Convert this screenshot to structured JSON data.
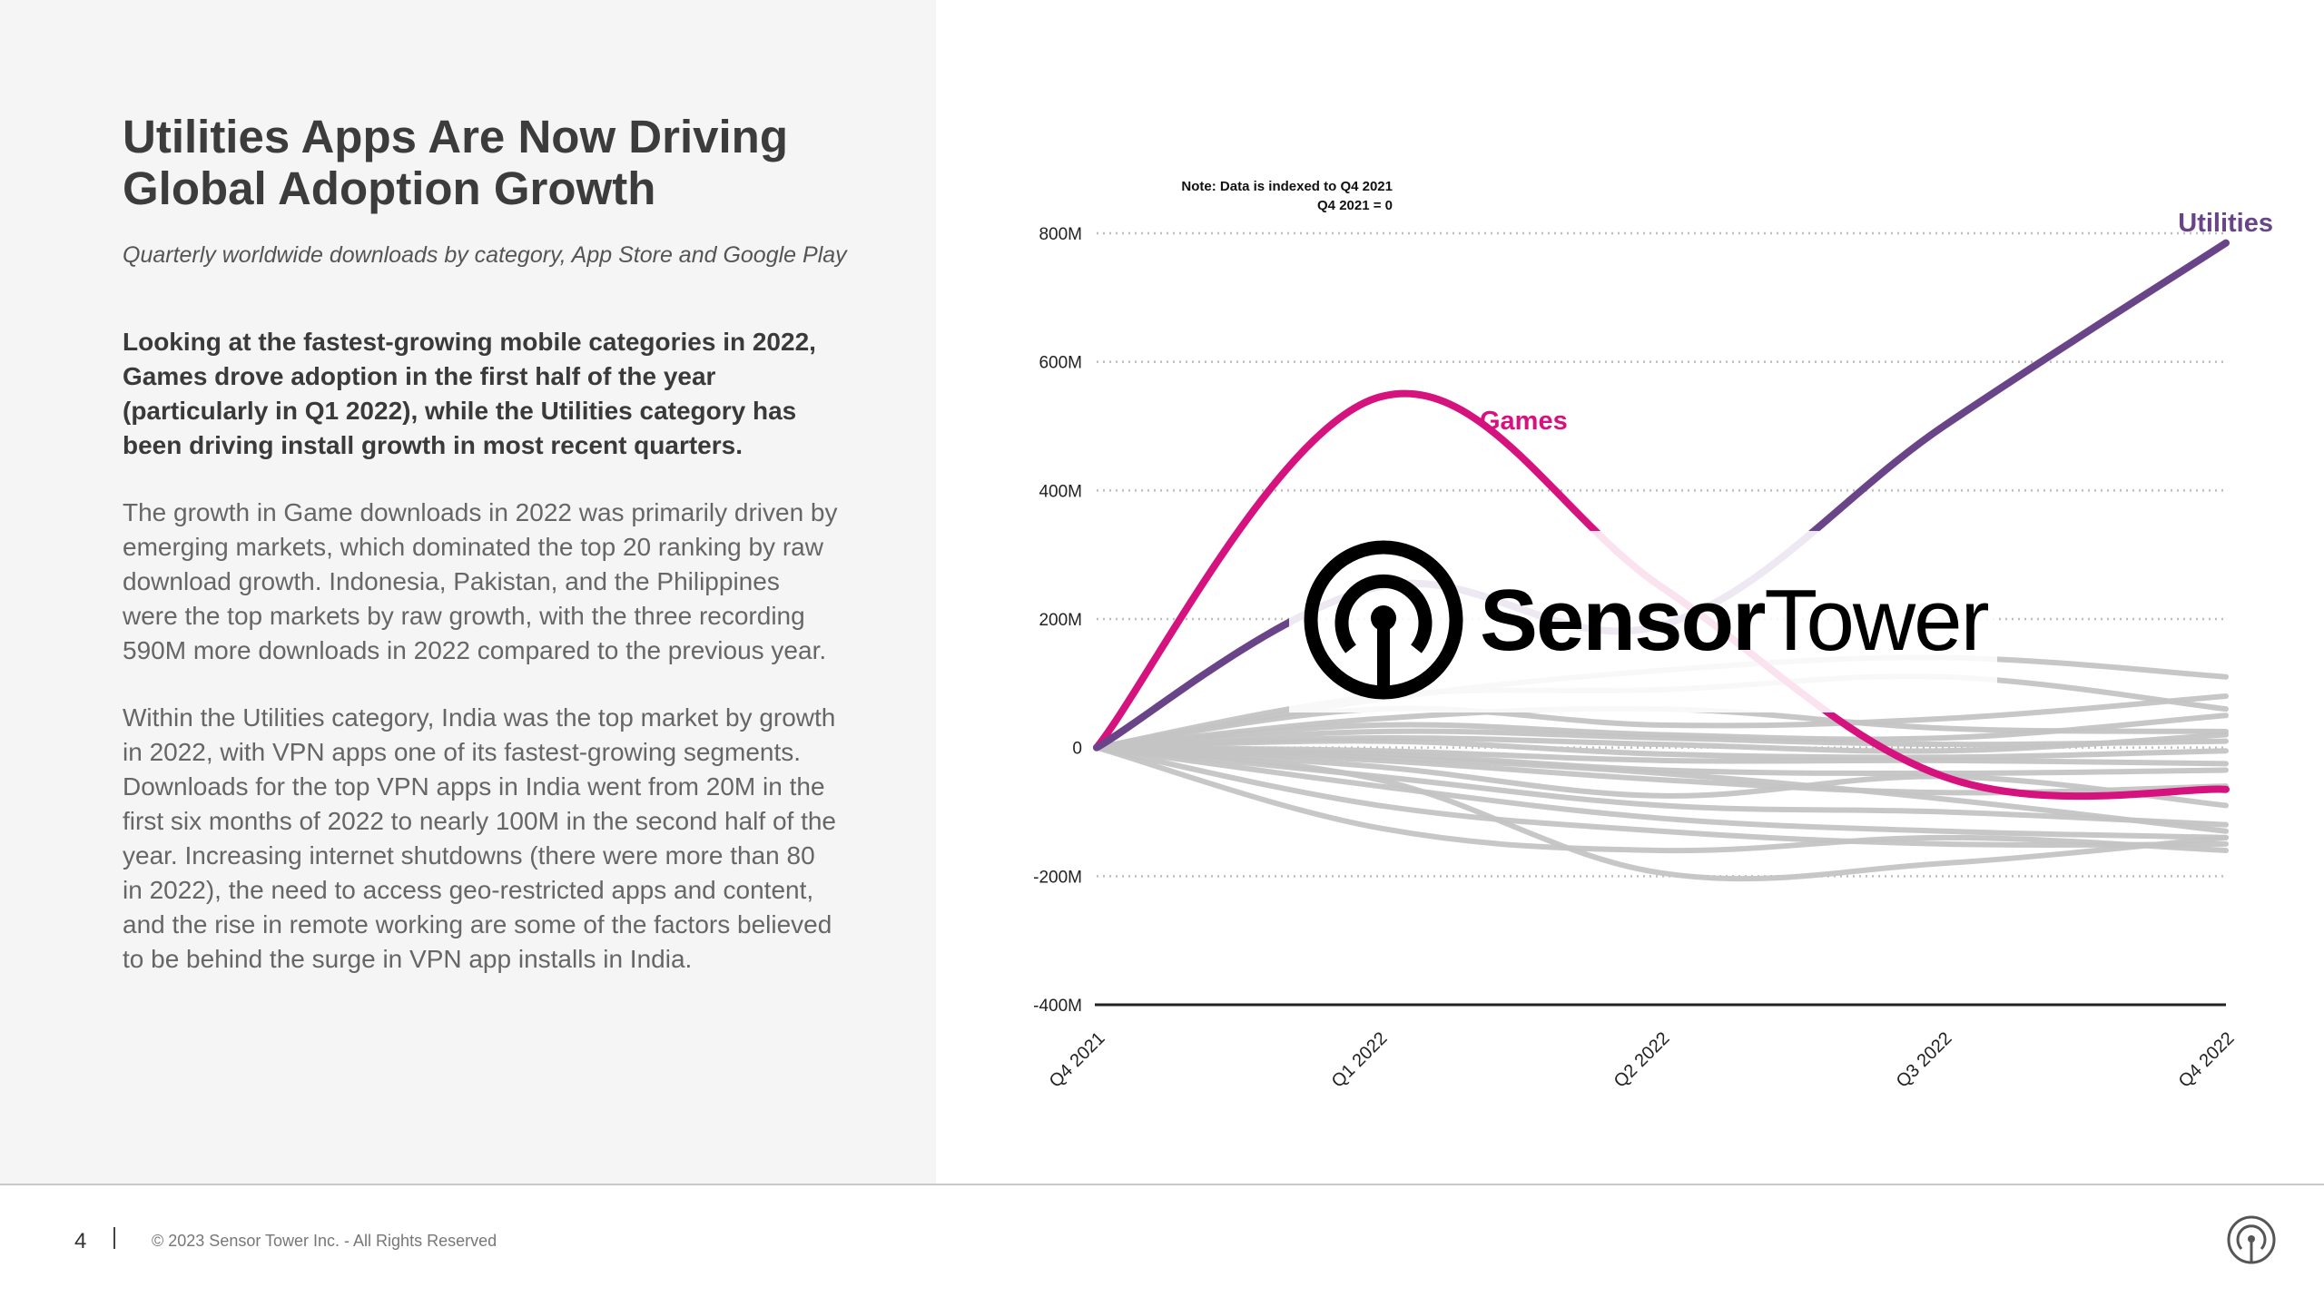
{
  "page": {
    "title": "Utilities Apps Are Now Driving Global Adoption Growth",
    "subtitle": "Quarterly worldwide downloads by category, App Store and Google Play",
    "lead": "Looking at the fastest-growing mobile categories in 2022, Games drove adoption in the first half of the year (particularly in Q1 2022), while the Utilities category has been driving install growth in most recent quarters.",
    "para1": "The growth in Game downloads in 2022 was primarily driven by emerging markets, which dominated the top 20 ranking by raw download growth. Indonesia, Pakistan, and the Philippines were the top markets by raw growth, with the three recording 590M more downloads in 2022 compared to the previous year.",
    "para2": "Within the Utilities category, India was the top market by growth in 2022, with VPN apps one of its fastest-growing segments. Downloads for the top VPN apps in India went from 20M in the first six months of 2022 to nearly 100M in the second half of the year. Increasing internet shutdowns (there were more than 80 in 2022), the need to access geo-restricted apps and content, and the rise in remote working are some of the factors believed to be behind the surge in VPN app installs in India."
  },
  "watermark": {
    "brand_bold": "Sensor",
    "brand_light": "Tower",
    "icon": "sensor-tower-logo-icon"
  },
  "footer": {
    "page_number": "4",
    "copyright": "© 2023 Sensor Tower Inc. - All Rights Reserved",
    "logo_icon": "sensor-tower-logo-icon"
  },
  "colors": {
    "games": "#d6127e",
    "utilities": "#6a4488",
    "other": "#c4c4c4",
    "text": "#3c3c3c"
  },
  "chart_data": {
    "type": "line",
    "note": [
      "Note: Data is indexed to Q4 2021",
      "Q4 2021 = 0"
    ],
    "x": [
      "Q4 2021",
      "Q1 2022",
      "Q2 2022",
      "Q3 2022",
      "Q4 2022"
    ],
    "yticks": [
      800,
      600,
      400,
      200,
      0,
      -200,
      -400
    ],
    "ytick_labels": [
      "800M",
      "600M",
      "400M",
      "200M",
      "0",
      "-200M",
      "-400M"
    ],
    "ylim": [
      -400,
      800
    ],
    "grid": true,
    "series": [
      {
        "name": "Games",
        "highlight": true,
        "values": [
          0,
          545,
          250,
          -45,
          -65
        ]
      },
      {
        "name": "Utilities",
        "highlight": true,
        "values": [
          0,
          250,
          190,
          500,
          785
        ]
      }
    ],
    "other_series": [
      [
        0,
        75,
        120,
        140,
        110
      ],
      [
        0,
        80,
        90,
        110,
        60
      ],
      [
        0,
        60,
        35,
        45,
        80
      ],
      [
        0,
        45,
        60,
        30,
        25
      ],
      [
        0,
        35,
        20,
        15,
        50
      ],
      [
        0,
        25,
        15,
        5,
        10
      ],
      [
        0,
        15,
        5,
        -5,
        20
      ],
      [
        0,
        10,
        -10,
        -15,
        -5
      ],
      [
        0,
        -5,
        -20,
        -20,
        -25
      ],
      [
        0,
        -10,
        -35,
        -40,
        -35
      ],
      [
        0,
        -20,
        -50,
        -70,
        -60
      ],
      [
        0,
        -30,
        -75,
        -45,
        -90
      ],
      [
        0,
        -45,
        -90,
        -100,
        -120
      ],
      [
        0,
        -60,
        -110,
        -130,
        -140
      ],
      [
        0,
        -90,
        -130,
        -150,
        -150
      ],
      [
        0,
        -125,
        -160,
        -140,
        -160
      ],
      [
        0,
        -50,
        -195,
        -180,
        -140
      ],
      [
        0,
        -15,
        -40,
        -80,
        -130
      ]
    ]
  }
}
